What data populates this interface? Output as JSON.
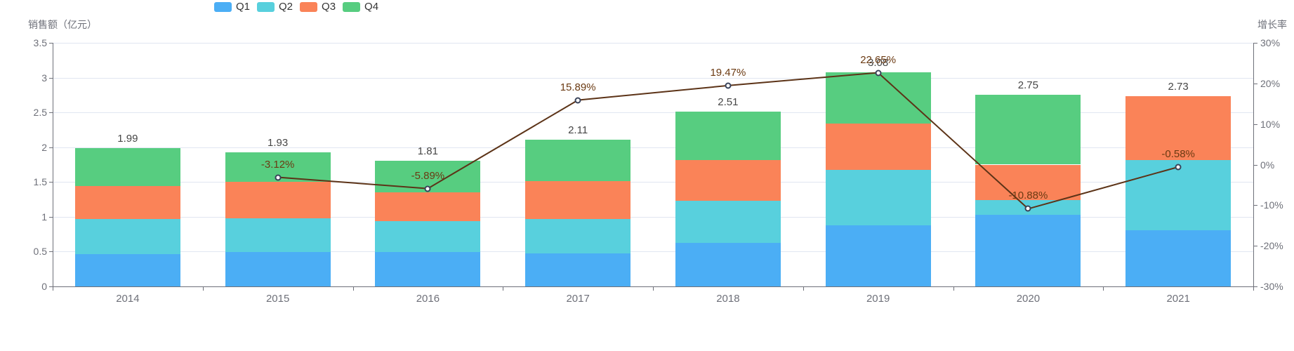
{
  "chart_data": {
    "type": "bar",
    "subtype": "stacked-bar-with-line-overlay",
    "title": "",
    "categories": [
      "2014",
      "2015",
      "2016",
      "2017",
      "2018",
      "2019",
      "2020",
      "2021"
    ],
    "series": [
      {
        "name": "Q1",
        "type": "bar",
        "color": "#4BAEF5",
        "values": [
          0.46,
          0.49,
          0.49,
          0.47,
          0.63,
          0.88,
          1.03,
          0.81
        ]
      },
      {
        "name": "Q2",
        "type": "bar",
        "color": "#58D0DD",
        "values": [
          0.51,
          0.49,
          0.45,
          0.5,
          0.6,
          0.79,
          0.21,
          1.01
        ]
      },
      {
        "name": "Q3",
        "type": "bar",
        "color": "#FA8358",
        "values": [
          0.47,
          0.52,
          0.41,
          0.54,
          0.59,
          0.67,
          0.51,
          0.91
        ]
      },
      {
        "name": "Q4",
        "type": "bar",
        "color": "#57CD80",
        "values": [
          0.55,
          0.43,
          0.46,
          0.6,
          0.69,
          0.74,
          1.0,
          0.0
        ]
      },
      {
        "name": "增长率",
        "type": "line",
        "color": "#5C3317",
        "values": [
          null,
          -3.12,
          -5.89,
          15.89,
          19.47,
          22.65,
          -10.88,
          -0.58
        ],
        "labels": [
          "",
          "-3.12%",
          "-5.89%",
          "15.89%",
          "19.47%",
          "22.65%",
          "-10.88%",
          "-0.58%"
        ]
      }
    ],
    "total_labels": [
      "1.99",
      "1.93",
      "1.81",
      "2.11",
      "2.51",
      "3.08",
      "2.75",
      "2.73"
    ],
    "ylabel": "销售额（亿元）",
    "y2label": "增长率",
    "ylim": [
      0,
      3.5
    ],
    "y_ticks": [
      "0",
      "0.5",
      "1",
      "1.5",
      "2",
      "2.5",
      "3",
      "3.5"
    ],
    "y2lim": [
      -30,
      30
    ],
    "y2_ticks": [
      "-30%",
      "-20%",
      "-10%",
      "0%",
      "10%",
      "20%",
      "30%"
    ],
    "grid": true,
    "legend_position": "top",
    "style": {
      "grid_color": "#E0E6F1",
      "axis_color": "#6E7079",
      "tick_label_color": "#6E7079",
      "total_label_color": "#464646",
      "growth_label_color": "#6B3A12",
      "point_fill": "#ffffff",
      "point_border": "#39435A"
    }
  }
}
